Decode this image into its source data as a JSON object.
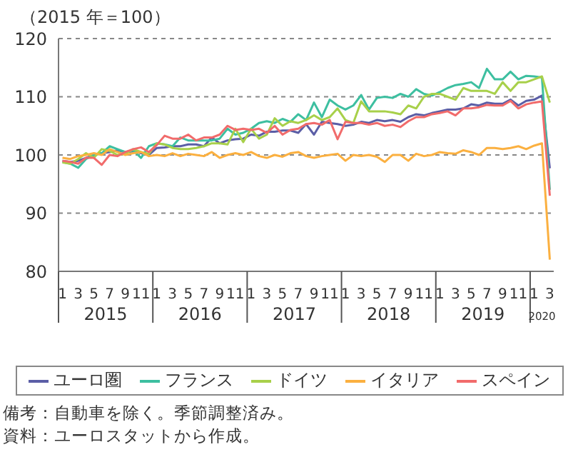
{
  "chart_data": {
    "type": "line",
    "ylabel": "（2015 年＝100）",
    "categories": [
      "1",
      null,
      "3",
      null,
      "5",
      null,
      "7",
      null,
      "9",
      null,
      "11",
      null,
      "1",
      null,
      "3",
      null,
      "5",
      null,
      "7",
      null,
      "9",
      null,
      "11",
      null,
      "1",
      null,
      "3",
      null,
      "5",
      null,
      "7",
      null,
      "9",
      null,
      "11",
      null,
      "1",
      null,
      "3",
      null,
      "5",
      null,
      "7",
      null,
      "9",
      null,
      "11",
      null,
      "1",
      null,
      "3",
      null,
      "5",
      null,
      "7",
      null,
      "9",
      null,
      "11",
      null,
      "1",
      null,
      "3"
    ],
    "series": [
      {
        "name": "ユーロ圏",
        "color": "#5b5ea6",
        "values": [
          99,
          98.8,
          99,
          99.5,
          100,
          100.3,
          100.5,
          100.8,
          100.5,
          100.6,
          100.3,
          100,
          101.2,
          101.3,
          101.5,
          101.5,
          101.8,
          101.8,
          101.5,
          103,
          102,
          102.5,
          102.7,
          102.8,
          103.5,
          103.3,
          104,
          104,
          104.2,
          104.2,
          103.8,
          105.3,
          103.5,
          105.7,
          105.5,
          105.3,
          105,
          105.2,
          105.7,
          105.5,
          106,
          105.8,
          106,
          105.7,
          106.5,
          107,
          106.8,
          107.2,
          107.5,
          107.8,
          107.8,
          108,
          108.7,
          108.5,
          109,
          108.8,
          108.8,
          109.5,
          108.5,
          109.3,
          109.5,
          110.2,
          97.7
        ]
      },
      {
        "name": "フランス",
        "color": "#3dbfa0",
        "values": [
          98.8,
          98.5,
          97.8,
          99.3,
          100,
          100.3,
          101.5,
          101,
          100.5,
          100.8,
          99.5,
          101.5,
          102,
          101.8,
          101.5,
          103,
          102.5,
          102.5,
          102.5,
          102.5,
          102.8,
          104.5,
          103.5,
          103.8,
          104.5,
          105.5,
          105.8,
          105.5,
          106.2,
          105.7,
          107,
          106,
          109,
          106.5,
          109.5,
          108.5,
          107.8,
          108.5,
          110.3,
          107.8,
          109.8,
          110,
          109.8,
          110.5,
          110,
          111.3,
          110.5,
          110.2,
          110.8,
          111.5,
          112,
          112.2,
          112.5,
          111.5,
          114.8,
          113,
          113,
          114.3,
          113,
          113.6,
          113.5,
          113.3,
          94
        ]
      },
      {
        "name": "ドイツ",
        "color": "#a8d04a",
        "values": [
          98.7,
          98.5,
          99.3,
          100.3,
          99.5,
          101,
          100.7,
          100,
          100.2,
          101,
          100.5,
          100.2,
          102,
          101.8,
          101.2,
          101,
          101,
          101.2,
          101.5,
          102,
          102,
          101.8,
          104.5,
          102.2,
          104.5,
          102.8,
          103.5,
          106.3,
          105,
          105.8,
          105.5,
          106,
          106.8,
          106,
          106.5,
          108,
          106,
          105.5,
          109.2,
          107.5,
          107.5,
          107.5,
          107.3,
          107,
          108.5,
          108,
          110,
          110.5,
          110.5,
          110,
          109.5,
          111.5,
          111,
          111,
          111,
          110.5,
          112.5,
          111,
          112.5,
          112.5,
          113,
          113.5,
          109
        ]
      },
      {
        "name": "イタリア",
        "color": "#fbb040",
        "values": [
          99.5,
          99.3,
          99.8,
          100,
          100.3,
          100,
          101,
          100.5,
          100,
          100.3,
          100.5,
          99.8,
          100,
          99.8,
          100.3,
          99.8,
          100.2,
          100,
          99.8,
          100.5,
          99.5,
          100,
          100.3,
          100,
          100.5,
          99.8,
          99.5,
          100,
          99.7,
          100.3,
          100.5,
          99.8,
          99.5,
          99.8,
          100,
          100.2,
          99,
          100,
          99.8,
          100,
          99.7,
          98.8,
          100,
          100,
          99,
          100.2,
          99.8,
          100,
          100.5,
          100.3,
          100.2,
          100.8,
          100.5,
          100,
          101.2,
          101.2,
          101,
          101.2,
          101.5,
          101,
          101.6,
          102,
          82
        ]
      },
      {
        "name": "スペイン",
        "color": "#f16b6b",
        "values": [
          99,
          98.8,
          98.5,
          99.5,
          99.5,
          98.3,
          100,
          99.8,
          100.5,
          101,
          101.3,
          100.5,
          101.7,
          103.3,
          102.8,
          102.8,
          103.5,
          102.5,
          103,
          103,
          103.5,
          105,
          104.3,
          104.5,
          104.3,
          104.5,
          103.8,
          105,
          103.5,
          104.3,
          104.5,
          105.3,
          105.5,
          105.2,
          106,
          102.7,
          105.7,
          105.5,
          105.5,
          105.2,
          105.5,
          105,
          105.2,
          104.8,
          105.8,
          106.5,
          106.5,
          107,
          107.2,
          107.5,
          106.8,
          108,
          108,
          108.2,
          108.6,
          108.5,
          108.5,
          109.3,
          108,
          108.7,
          109,
          109.2,
          93
        ]
      }
    ],
    "ylim": [
      80,
      120
    ],
    "yticks": [
      80,
      90,
      100,
      110,
      120
    ],
    "grid": "y",
    "legend": "bottom",
    "marker": "none",
    "line_style": "solid",
    "annotations": [
      "2015",
      "2016",
      "2017",
      "2018",
      "2019",
      "2020",
      "備考：自動車を除く。季節調整済み。",
      "資料：ユーロスタットから作成。"
    ]
  }
}
